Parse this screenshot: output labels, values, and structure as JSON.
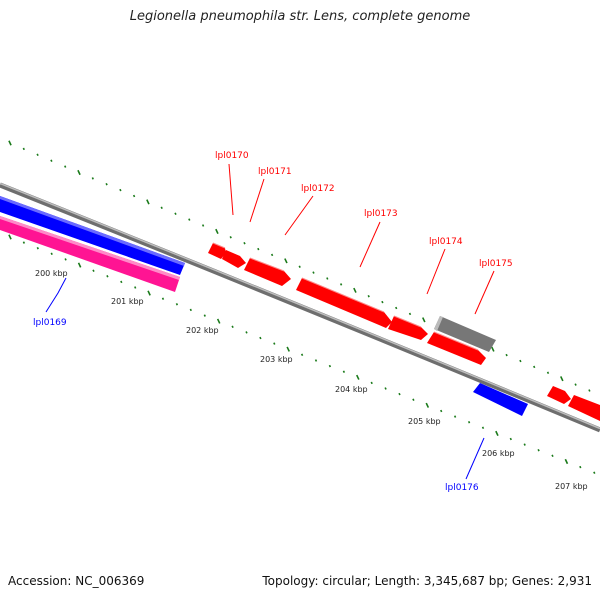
{
  "title": "Legionella pneumophila str. Lens, complete genome",
  "footer": {
    "accession": "Accession: NC_006369",
    "summary": "Topology: circular; Length: 3,345,687 bp; Genes: 2,931"
  },
  "colors": {
    "forward_gene": "#ff0000",
    "reverse_gene": "#0000ff",
    "other_reverse": "#ff1493",
    "other_gene": "#777777",
    "tick": "#1a7a1a",
    "backbone": "#888888"
  },
  "scale": {
    "ticks": [
      {
        "label": "200 kbp"
      },
      {
        "label": "201 kbp"
      },
      {
        "label": "202 kbp"
      },
      {
        "label": "203 kbp"
      },
      {
        "label": "204 kbp"
      },
      {
        "label": "205 kbp"
      },
      {
        "label": "206 kbp"
      },
      {
        "label": "207 kbp"
      }
    ]
  },
  "genes": [
    {
      "name": "lpl0169",
      "color": "#0000ff"
    },
    {
      "name": "lpl0170",
      "color": "#ff0000"
    },
    {
      "name": "lpl0171",
      "color": "#ff0000"
    },
    {
      "name": "lpl0172",
      "color": "#ff0000"
    },
    {
      "name": "lpl0173",
      "color": "#ff0000"
    },
    {
      "name": "lpl0174",
      "color": "#ff0000"
    },
    {
      "name": "lpl0175",
      "color": "#ff0000"
    },
    {
      "name": "lpl0176",
      "color": "#0000ff"
    }
  ]
}
